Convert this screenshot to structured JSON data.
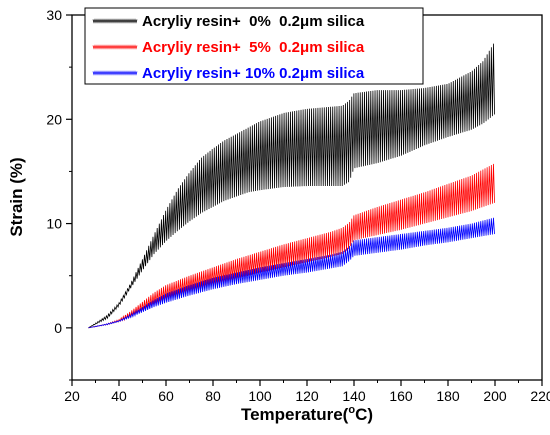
{
  "chart_data": {
    "type": "line",
    "title": "",
    "xlabel": "Temperature(°C)",
    "xlabel_main": "Temperature(",
    "xlabel_sup": "o",
    "xlabel_tail": "C)",
    "ylabel": "Strain (%)",
    "xlim": [
      20,
      220
    ],
    "ylim": [
      -5,
      30
    ],
    "xticks": [
      20,
      40,
      60,
      80,
      100,
      120,
      140,
      160,
      180,
      200,
      220
    ],
    "yticks": [
      0,
      10,
      20,
      30
    ],
    "grid": false,
    "legend_position": "top-left",
    "series": [
      {
        "name": "Acryliy resin+  0%  0.2μm silica",
        "color": "#000000",
        "x": [
          27,
          35,
          40,
          45,
          50,
          55,
          60,
          65,
          70,
          75,
          80,
          85,
          90,
          95,
          100,
          110,
          120,
          130,
          135,
          138,
          140,
          150,
          160,
          170,
          180,
          190,
          195,
          200
        ],
        "lower": [
          0,
          0.9,
          2.1,
          3.8,
          5.5,
          7.1,
          8.3,
          9.3,
          10.2,
          11.0,
          11.6,
          12.2,
          12.6,
          13.0,
          13.2,
          13.5,
          13.6,
          13.6,
          13.6,
          14.0,
          15.3,
          15.8,
          16.5,
          17.5,
          18.3,
          19.0,
          19.6,
          20.5
        ],
        "upper": [
          0,
          1.2,
          2.4,
          4.3,
          6.6,
          9.0,
          11.3,
          13.3,
          14.9,
          16.3,
          17.2,
          18.0,
          18.6,
          19.2,
          19.8,
          20.6,
          21.0,
          21.2,
          21.3,
          21.8,
          22.5,
          22.8,
          22.8,
          23.0,
          23.4,
          24.6,
          25.6,
          27.5
        ]
      },
      {
        "name": "Acryliy resin+  5%  0.2μm silica",
        "color": "#ff0000",
        "x": [
          27,
          35,
          40,
          45,
          50,
          55,
          60,
          70,
          80,
          90,
          100,
          110,
          120,
          130,
          135,
          138,
          140,
          150,
          160,
          170,
          180,
          190,
          200
        ],
        "lower": [
          0,
          0.3,
          0.6,
          1.0,
          1.6,
          2.1,
          2.6,
          3.4,
          4.1,
          4.7,
          5.3,
          5.8,
          6.3,
          6.8,
          7.1,
          7.6,
          8.4,
          8.9,
          9.4,
          10.0,
          10.6,
          11.2,
          12.0
        ],
        "upper": [
          0,
          0.4,
          0.8,
          1.6,
          2.5,
          3.4,
          4.1,
          5.0,
          5.8,
          6.6,
          7.3,
          8.0,
          8.6,
          9.2,
          9.6,
          10.1,
          10.8,
          11.6,
          12.3,
          13.0,
          13.8,
          14.6,
          15.8
        ]
      },
      {
        "name": "Acryliy resin+ 10% 0.2μm silica",
        "color": "#0000ff",
        "x": [
          27,
          35,
          40,
          45,
          50,
          55,
          60,
          70,
          80,
          90,
          100,
          110,
          120,
          130,
          135,
          138,
          140,
          150,
          160,
          170,
          180,
          190,
          200
        ],
        "lower": [
          0,
          0.3,
          0.6,
          1.0,
          1.5,
          2.0,
          2.4,
          3.1,
          3.7,
          4.2,
          4.6,
          5.0,
          5.3,
          5.7,
          5.9,
          6.4,
          6.9,
          7.2,
          7.5,
          7.9,
          8.2,
          8.6,
          9.0
        ],
        "upper": [
          0,
          0.4,
          0.7,
          1.3,
          2.0,
          2.7,
          3.3,
          4.1,
          4.8,
          5.3,
          5.8,
          6.2,
          6.6,
          7.0,
          7.3,
          7.8,
          8.4,
          8.7,
          9.0,
          9.3,
          9.6,
          10.0,
          10.6
        ]
      }
    ]
  }
}
